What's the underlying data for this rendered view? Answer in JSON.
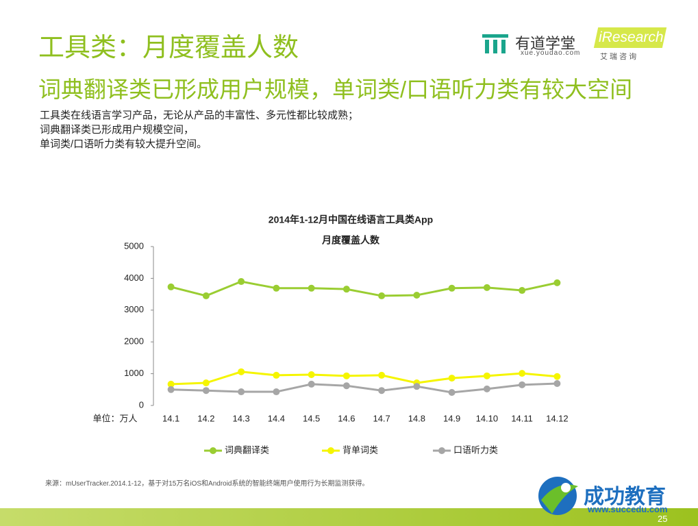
{
  "header": {
    "title": "工具类：月度覆盖人数",
    "subtitle": "词典翻译类已形成用户规模，单词类/口语听力类有较大空间",
    "body": [
      "工具类在线语言学习产品，无论从产品的丰富性、多元性都比较成熟；",
      "词典翻译类已形成用户规模空间，",
      "单词类/口语听力类有较大提升空间。"
    ]
  },
  "logos": {
    "youdao": "有道学堂",
    "youdao_url": "xue.youdao.com",
    "iresearch": "iResearch",
    "iresearch_cn": "艾 瑞 咨 询",
    "succedu": "成功教育",
    "succedu_url": "www.succedu.com"
  },
  "source": "来源：mUserTracker.2014.1-12，基于对15万名iOS和Android系统的智能终端用户使用行为长期监测获得。",
  "page_number": "25",
  "chart_data": {
    "type": "line",
    "title": "2014年1-12月中国在线语言工具类App",
    "subtitle": "月度覆盖人数",
    "y_unit": "单位：万人",
    "categories": [
      "14.1",
      "14.2",
      "14.3",
      "14.4",
      "14.5",
      "14.6",
      "14.7",
      "14.8",
      "14.9",
      "14.10",
      "14.11",
      "14.12"
    ],
    "series": [
      {
        "name": "词典翻译类",
        "color": "#9acd32",
        "values": [
          3730,
          3450,
          3900,
          3690,
          3690,
          3660,
          3450,
          3470,
          3690,
          3710,
          3620,
          3860
        ]
      },
      {
        "name": "背单词类",
        "color": "#f5f500",
        "values": [
          670,
          710,
          1060,
          950,
          970,
          930,
          950,
          710,
          860,
          930,
          1010,
          910
        ]
      },
      {
        "name": "口语听力类",
        "color": "#a6a6a6",
        "values": [
          500,
          470,
          430,
          430,
          670,
          620,
          470,
          600,
          410,
          520,
          650,
          690
        ]
      }
    ],
    "ylim": [
      0,
      5000
    ],
    "yticks": [
      0,
      1000,
      2000,
      3000,
      4000,
      5000
    ],
    "grid": false,
    "legend": "bottom"
  }
}
